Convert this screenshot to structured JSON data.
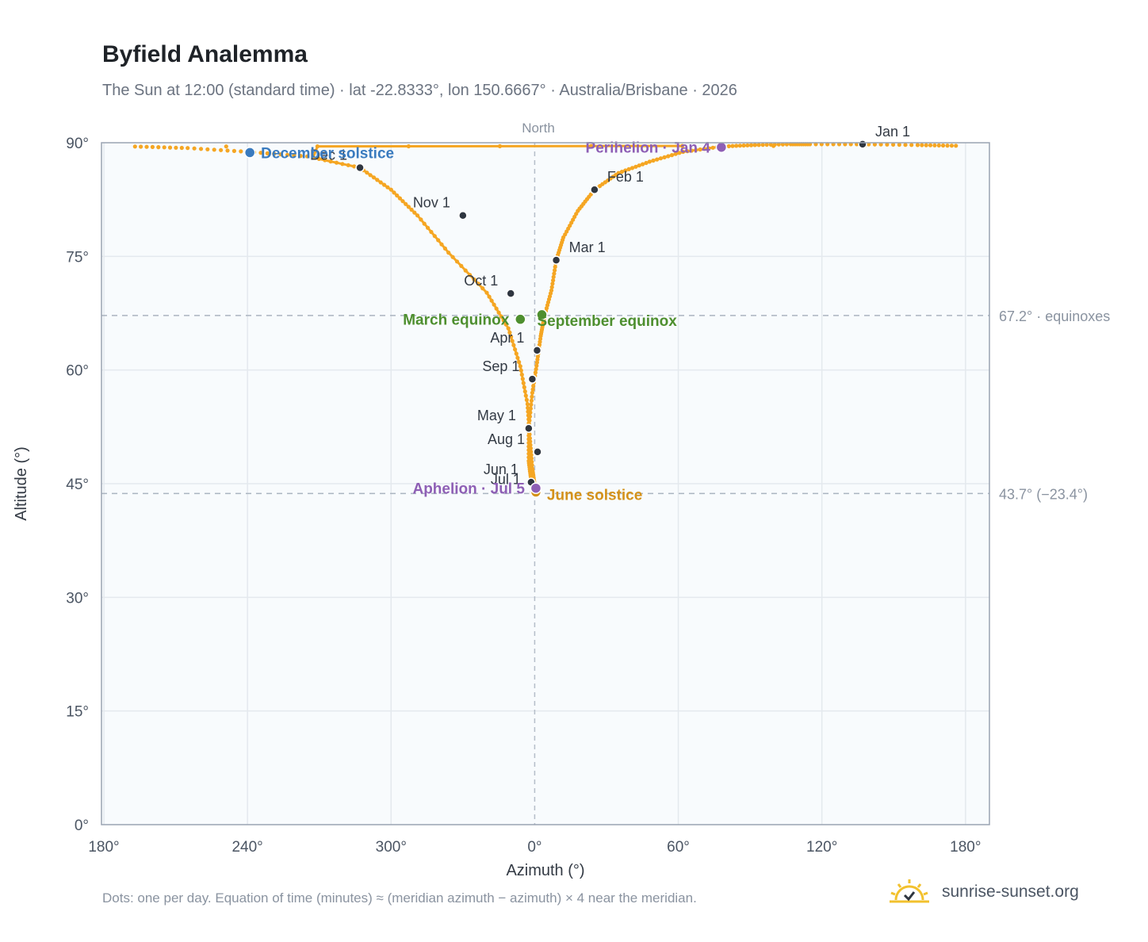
{
  "header": {
    "title": "Byfield Analemma",
    "subtitle": "The Sun at 12:00 (standard time) · lat -22.8333°, lon 150.6667° · Australia/Brisbane · 2026"
  },
  "footer": {
    "note": "Dots: one per day. Equation of time (minutes) ≈ (meridian azimuth − azimuth) × 4 near the meridian.",
    "brand": "sunrise-sunset.org"
  },
  "chart_data": {
    "type": "scatter",
    "xlabel": "Azimuth (°)",
    "ylabel": "Altitude (°)",
    "x_center_label": "North",
    "x_center": 0,
    "xlim_offset": [
      -181,
      190
    ],
    "ylim": [
      0,
      90
    ],
    "x_ticks": [
      {
        "offset": -180,
        "label": "180°"
      },
      {
        "offset": -120,
        "label": "240°"
      },
      {
        "offset": -60,
        "label": "300°"
      },
      {
        "offset": 0,
        "label": "0°"
      },
      {
        "offset": 60,
        "label": "60°"
      },
      {
        "offset": 120,
        "label": "120°"
      },
      {
        "offset": 180,
        "label": "180°"
      }
    ],
    "y_ticks": [
      {
        "value": 0,
        "label": "0°"
      },
      {
        "value": 15,
        "label": "15°"
      },
      {
        "value": 30,
        "label": "30°"
      },
      {
        "value": 45,
        "label": "45°"
      },
      {
        "value": 60,
        "label": "60°"
      },
      {
        "value": 75,
        "label": "75°"
      },
      {
        "value": 90,
        "label": "90°"
      }
    ],
    "reference_lines": [
      {
        "value": 67.2,
        "label": "67.2° · equinoxes"
      },
      {
        "value": 43.7,
        "label": "43.7° (−23.4°)"
      }
    ],
    "grid": true,
    "colors": {
      "path": "#f5a623",
      "month_marker": "#2f3640",
      "solstice_december": "#3a7bbf",
      "solstice_june": "#d4921a",
      "equinox": "#4e8f2f",
      "apsis": "#8e5fb5",
      "grid": "#e4e9ee",
      "plot_bg": "#f8fbfd",
      "reference": "#aab4c0"
    },
    "series": [
      {
        "points": [
          [
            137,
            89.8
          ],
          [
            160,
            89.7
          ],
          [
            176,
            89.6
          ],
          [
            -167,
            89.5
          ],
          [
            -145,
            89.3
          ],
          [
            -120,
            88.8
          ],
          [
            -95,
            88.2
          ],
          [
            -73,
            86.7
          ],
          [
            -60,
            83.8
          ],
          [
            -49,
            80.4
          ],
          [
            -36,
            75.5
          ],
          [
            -20,
            70.2
          ],
          [
            -11,
            65.5
          ],
          [
            -6,
            60.5
          ],
          [
            -3,
            55.5
          ],
          [
            -2,
            51.0
          ],
          [
            -1,
            47.0
          ],
          [
            0,
            44.8
          ],
          [
            1,
            43.8
          ],
          [
            0.8,
            44.0
          ],
          [
            0,
            44.5
          ],
          [
            -1.5,
            45.5
          ],
          [
            -2.5,
            48.0
          ],
          [
            -2.5,
            52.3
          ],
          [
            -1,
            57.0
          ],
          [
            1,
            61.0
          ],
          [
            2.5,
            64.5
          ],
          [
            4,
            67.0
          ],
          [
            7,
            70.5
          ],
          [
            9,
            74.5
          ],
          [
            12,
            77.5
          ],
          [
            18,
            81.0
          ],
          [
            25,
            83.8
          ],
          [
            35,
            86.0
          ],
          [
            48,
            87.5
          ],
          [
            62,
            88.8
          ],
          [
            78,
            89.5
          ],
          [
            92,
            89.7
          ],
          [
            107,
            89.8
          ],
          [
            115,
            89.8
          ],
          [
            137,
            89.8
          ]
        ]
      }
    ],
    "month_markers": [
      {
        "label": "Jan 1",
        "az": 137,
        "alt": 89.8,
        "label_pos": "above-right"
      },
      {
        "label": "Feb 1",
        "az": 25,
        "alt": 83.8,
        "label_pos": "above-right"
      },
      {
        "label": "Mar 1",
        "az": 9,
        "alt": 74.5,
        "label_pos": "above-right"
      },
      {
        "label": "Apr 1",
        "az": 1,
        "alt": 62.6,
        "label_pos": "below-left"
      },
      {
        "label": "May 1",
        "az": -2.5,
        "alt": 52.3,
        "label_pos": "below-left"
      },
      {
        "label": "Jun 1",
        "az": -1.5,
        "alt": 45.2,
        "label_pos": "below-left"
      },
      {
        "label": "Jul 1",
        "az": -0.5,
        "alt": 43.9,
        "label_pos": "below-left"
      },
      {
        "label": "Aug 1",
        "az": 1.2,
        "alt": 49.2,
        "label_pos": "below-left"
      },
      {
        "label": "Sep 1",
        "az": -1,
        "alt": 58.8,
        "label_pos": "below-left"
      },
      {
        "label": "Oct 1",
        "az": -10,
        "alt": 70.1,
        "label_pos": "above-left"
      },
      {
        "label": "Nov 1",
        "az": -30,
        "alt": 80.4,
        "label_pos": "above-left"
      },
      {
        "label": "Dec 1",
        "az": -73,
        "alt": 86.7,
        "label_pos": "above-left"
      }
    ],
    "events": [
      {
        "label": "December solstice",
        "az": -119,
        "alt": 88.7,
        "kind": "solstice_december",
        "label_pos": "right"
      },
      {
        "label": "June solstice",
        "az": 0.5,
        "alt": 43.9,
        "kind": "solstice_june",
        "label_pos": "right"
      },
      {
        "label": "March equinox",
        "az": -6,
        "alt": 66.7,
        "kind": "equinox",
        "label_pos": "left"
      },
      {
        "label": "September equinox",
        "az": 3,
        "alt": 67.3,
        "kind": "equinox",
        "label_pos": "right-below"
      },
      {
        "label": "Perihelion · Jan 4",
        "az": 78,
        "alt": 89.4,
        "kind": "apsis",
        "label_pos": "left"
      },
      {
        "label": "Aphelion · Jul 5",
        "az": 0.5,
        "alt": 44.4,
        "kind": "apsis",
        "label_pos": "left"
      }
    ]
  }
}
